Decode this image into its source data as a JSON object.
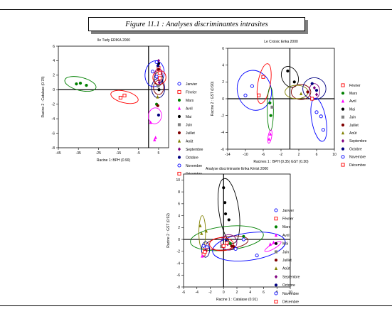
{
  "figure_title": "Figure 11.1 : Analyses discriminantes intrasites",
  "colors": {
    "Janvier": "#0000ff",
    "Février": "#ff0000",
    "Mars": "#008000",
    "Avril": "#ff00ff",
    "Mai": "#000000",
    "Juin": "#808080",
    "Juillet": "#800000",
    "Août": "#808000",
    "Septembre": "#800080",
    "Octobre": "#000080",
    "Novembre": "#0000ff",
    "Décembre": "#ff0000"
  },
  "chart_data": [
    {
      "type": "scatter",
      "title": "Ile Tudy ERIKA 2000",
      "xlabel": "Racine 1: BPH (0.90)",
      "ylabel": "Racine 2 : Catalase (0.78)",
      "xlim": [
        -45,
        10
      ],
      "ylim": [
        -8,
        6
      ],
      "xticks": [
        -45,
        -35,
        -25,
        -15,
        -5,
        5
      ],
      "yticks": [
        -8,
        -6,
        -4,
        -2,
        0,
        2,
        4,
        6
      ],
      "legend": [
        "Janvier",
        "Février",
        "Mars",
        "Avril",
        "Mai",
        "Juin",
        "Juillet",
        "Août",
        "Septembre",
        "Octobre",
        "Novembre",
        "Décembre"
      ],
      "series": [
        {
          "name": "Janvier",
          "points": [
            [
              2,
              2.5
            ],
            [
              4,
              1.8
            ]
          ]
        },
        {
          "name": "Février",
          "points": [
            [
              -14,
              -1.1
            ],
            [
              -12,
              -0.8
            ],
            [
              5,
              3.0
            ],
            [
              5.5,
              2.3
            ]
          ]
        },
        {
          "name": "Mars",
          "points": [
            [
              -36,
              0.8
            ],
            [
              -34,
              0.9
            ],
            [
              -31,
              0.6
            ],
            [
              4,
              -2.0
            ]
          ]
        },
        {
          "name": "Avril",
          "points": [
            [
              1,
              -4.5
            ],
            [
              3,
              -6.9
            ],
            [
              3.5,
              -6.6
            ]
          ]
        },
        {
          "name": "Mai",
          "points": [
            [
              5,
              3.6
            ],
            [
              5.2,
              0.0
            ]
          ]
        },
        {
          "name": "Juin",
          "points": [
            [
              4.8,
              0.5
            ]
          ]
        },
        {
          "name": "Juillet",
          "points": [
            [
              5,
              2.8
            ],
            [
              4.6,
              -2.2
            ]
          ]
        },
        {
          "name": "Août",
          "points": [
            [
              4.5,
              -1.0
            ]
          ]
        },
        {
          "name": "Septembre",
          "points": [
            [
              5,
              4.0
            ],
            [
              5.3,
              1.0
            ]
          ]
        },
        {
          "name": "Octobre",
          "points": [
            [
              4.7,
              3.3
            ],
            [
              5,
              -3.5
            ]
          ]
        },
        {
          "name": "Novembre",
          "points": [
            [
              4,
              3.8
            ]
          ]
        },
        {
          "name": "Décembre",
          "points": [
            [
              5.6,
              1.6
            ]
          ]
        }
      ],
      "ellipses": [
        {
          "name": "Mars",
          "cx": -34,
          "cy": 0.8,
          "rx": 8,
          "ry": 0.9,
          "rot": 14
        },
        {
          "name": "Février",
          "cx": -12,
          "cy": -1,
          "rx": 7,
          "ry": 0.8,
          "rot": 14
        },
        {
          "name": "Janvier",
          "cx": 3,
          "cy": 2.2,
          "rx": 6.5,
          "ry": 1.3,
          "rot": -80
        },
        {
          "name": "Avril",
          "cx": 3.2,
          "cy": -3.6,
          "rx": 4,
          "ry": 0.9,
          "rot": -82
        },
        {
          "name": "Juillet",
          "cx": 5,
          "cy": 0.3,
          "rx": 3.5,
          "ry": 0.7,
          "rot": -90
        },
        {
          "name": "Mai",
          "cx": 5,
          "cy": 1.5,
          "rx": 3.4,
          "ry": 0.6,
          "rot": -90
        },
        {
          "name": "Octobre",
          "cx": 4.8,
          "cy": 0.2,
          "rx": 4.8,
          "ry": 0.9,
          "rot": -90
        },
        {
          "name": "Décembre",
          "cx": 5.4,
          "cy": 1.7,
          "rx": 3.5,
          "ry": 0.9,
          "rot": -86
        },
        {
          "name": "Septembre",
          "cx": 5,
          "cy": 2.2,
          "rx": 2.6,
          "ry": 0.5,
          "rot": -90
        }
      ]
    },
    {
      "type": "scatter",
      "title": "Le Croisic  Erika 2000",
      "xlabel": "Racines 1 : BPH (0.35)  GST (0.30)",
      "ylabel": "Racine 2 : GST (0.90)",
      "xlim": [
        -14,
        10
      ],
      "ylim": [
        -6,
        6
      ],
      "xticks": [
        -14,
        -10,
        -6,
        -2,
        2,
        6,
        10
      ],
      "yticks": [
        -6,
        -4,
        -2,
        0,
        2,
        4,
        6
      ],
      "legend": [
        "Février",
        "Mars",
        "Avril",
        "Mai",
        "Juin",
        "Juillet",
        "Août",
        "Septembre",
        "Octobre",
        "Novembre",
        "Décembre"
      ],
      "series": [
        {
          "name": "Février",
          "points": [
            [
              -7,
              0.4
            ],
            [
              -6,
              2.6
            ]
          ]
        },
        {
          "name": "Mars",
          "points": [
            [
              -4.5,
              -0.5
            ],
            [
              -4.3,
              -2.0
            ]
          ]
        },
        {
          "name": "Avril",
          "points": [
            [
              -4.7,
              -4.8
            ],
            [
              -4.4,
              -4.2
            ]
          ]
        },
        {
          "name": "Mai",
          "points": [
            [
              -0.5,
              3.3
            ],
            [
              1,
              2.0
            ]
          ]
        },
        {
          "name": "Juin",
          "points": [
            [
              -4,
              -1.0
            ]
          ]
        },
        {
          "name": "Juillet",
          "points": [
            [
              4,
              0.8
            ]
          ]
        },
        {
          "name": "Août",
          "points": [
            [
              2.5,
              0.6
            ]
          ]
        },
        {
          "name": "Septembre",
          "points": [
            [
              5.5,
              1.3
            ],
            [
              6,
              0.5
            ]
          ]
        },
        {
          "name": "Octobre",
          "points": [
            [
              5,
              1.8
            ],
            [
              6,
              1.0
            ]
          ]
        },
        {
          "name": "Novembre",
          "points": [
            [
              -10,
              0.4
            ],
            [
              -8.5,
              1.5
            ],
            [
              6,
              -1.6
            ],
            [
              7,
              -2.1
            ],
            [
              7.5,
              -3.7
            ]
          ]
        },
        {
          "name": "Décembre",
          "points": [
            [
              5,
              0.0
            ]
          ]
        }
      ],
      "ellipses": [
        {
          "name": "Novembre",
          "cx": -8,
          "cy": 1,
          "rx": 3.8,
          "ry": 2.4,
          "rot": -15
        },
        {
          "name": "Février",
          "cx": -5.8,
          "cy": 1.8,
          "rx": 1.4,
          "ry": 2.4,
          "rot": 10
        },
        {
          "name": "Mars",
          "cx": -4.4,
          "cy": -1.2,
          "rx": 0.7,
          "ry": 2.6,
          "rot": 0
        },
        {
          "name": "Avril",
          "cx": -4.5,
          "cy": -4.5,
          "rx": 0.4,
          "ry": 0.8,
          "rot": 10
        },
        {
          "name": "Mai",
          "cx": 0,
          "cy": 2.6,
          "rx": 1.8,
          "ry": 1.3,
          "rot": -25
        },
        {
          "name": "Juillet",
          "cx": 2.5,
          "cy": 0.8,
          "rx": 2.2,
          "ry": 0.9,
          "rot": 0
        },
        {
          "name": "Août",
          "cx": 1.5,
          "cy": 0.8,
          "rx": 2.6,
          "ry": 0.8,
          "rot": 0
        },
        {
          "name": "Septembre",
          "cx": 5.5,
          "cy": 0.9,
          "rx": 1.2,
          "ry": 0.9,
          "rot": 0
        },
        {
          "name": "Octobre",
          "cx": 5.5,
          "cy": 1.2,
          "rx": 2.6,
          "ry": 1.3,
          "rot": 0
        },
        {
          "name": "Novembre",
          "cx": 6.5,
          "cy": -2.5,
          "rx": 1.6,
          "ry": 2.6,
          "rot": -10
        }
      ]
    },
    {
      "type": "scatter",
      "title": "Analyse discriminante Erika Kérist 2000",
      "xlabel": "Racine 1 : Catalase (0.91)",
      "ylabel": "Racine 2 : GST (0.92)",
      "xlim": [
        -6,
        10
      ],
      "ylim": [
        -8,
        11
      ],
      "xticks": [
        -6,
        -4,
        -2,
        0,
        2,
        4,
        6,
        8,
        10
      ],
      "yticks": [
        -8,
        -6,
        -4,
        -2,
        0,
        2,
        4,
        6,
        8,
        10
      ],
      "legend": [
        "Janvier",
        "Février",
        "Mars",
        "Avril",
        "Mai",
        "Juin",
        "Juillet",
        "Août",
        "Septembre",
        "Octobre",
        "Novembre",
        "Décembre"
      ],
      "series": [
        {
          "name": "Janvier",
          "points": [
            [
              -3,
              -1.1
            ],
            [
              -2.5,
              -1.3
            ],
            [
              5,
              -2.7
            ]
          ]
        },
        {
          "name": "Février",
          "points": [
            [
              -3,
              -2.5
            ],
            [
              -2.7,
              -1.8
            ]
          ]
        },
        {
          "name": "Mars",
          "points": [
            [
              1,
              -0.7
            ],
            [
              3,
              0.5
            ]
          ]
        },
        {
          "name": "Avril",
          "points": [
            [
              -3.2,
              -2.8
            ],
            [
              7,
              -0.8
            ],
            [
              7.5,
              -0.5
            ]
          ]
        },
        {
          "name": "Mai",
          "points": [
            [
              0,
              8.7
            ],
            [
              0.2,
              6.2
            ],
            [
              0.3,
              4.3
            ],
            [
              0.8,
              3.3
            ]
          ]
        },
        {
          "name": "Juin",
          "points": [
            [
              -0.3,
              -1.2
            ]
          ]
        },
        {
          "name": "Juillet",
          "points": [
            [
              1.2,
              -1.1
            ],
            [
              1.5,
              -1.2
            ]
          ]
        },
        {
          "name": "Août",
          "points": [
            [
              -2.6,
              1.4
            ],
            [
              -3.5,
              2.3
            ],
            [
              -3.3,
              1.0
            ]
          ]
        },
        {
          "name": "Septembre",
          "points": [
            [
              0.6,
              -0.8
            ]
          ]
        },
        {
          "name": "Octobre",
          "points": [
            [
              -2.7,
              -1.9
            ],
            [
              0.4,
              -0.3
            ]
          ]
        },
        {
          "name": "Novembre",
          "points": [
            [
              1.8,
              -1.6
            ],
            [
              3,
              0.0
            ]
          ]
        },
        {
          "name": "Décembre",
          "points": [
            [
              -2.8,
              -2.1
            ],
            [
              0,
              -1.1
            ],
            [
              0.5,
              -0.6
            ]
          ]
        }
      ],
      "ellipses": [
        {
          "name": "Mai",
          "cx": 0.8,
          "cy": 4.8,
          "rx": 1.5,
          "ry": 5.5,
          "rot": -8
        },
        {
          "name": "Mars",
          "cx": 0.5,
          "cy": 0.2,
          "rx": 5.5,
          "ry": 2.0,
          "rot": -6
        },
        {
          "name": "Janvier",
          "cx": 3.8,
          "cy": -1.2,
          "rx": 5.5,
          "ry": 2.3,
          "rot": -8
        },
        {
          "name": "Août",
          "cx": -3.2,
          "cy": 1.2,
          "rx": 0.5,
          "ry": 2.8,
          "rot": 0
        },
        {
          "name": "Avril",
          "cx": 7.4,
          "cy": -1.2,
          "rx": 1.4,
          "ry": 0.4,
          "rot": -30
        },
        {
          "name": "Juillet",
          "cx": 0.5,
          "cy": -0.6,
          "rx": 3.2,
          "ry": 1.1,
          "rot": -8
        },
        {
          "name": "Octobre",
          "cx": -2.7,
          "cy": -1.7,
          "rx": 0.6,
          "ry": 1.3,
          "rot": 0
        },
        {
          "name": "Décembre",
          "cx": -0.3,
          "cy": -0.8,
          "rx": 1.8,
          "ry": 1.1,
          "rot": 0
        },
        {
          "name": "Septembre",
          "cx": 0.8,
          "cy": -0.5,
          "rx": 1.2,
          "ry": 1.3,
          "rot": 0
        }
      ]
    }
  ]
}
